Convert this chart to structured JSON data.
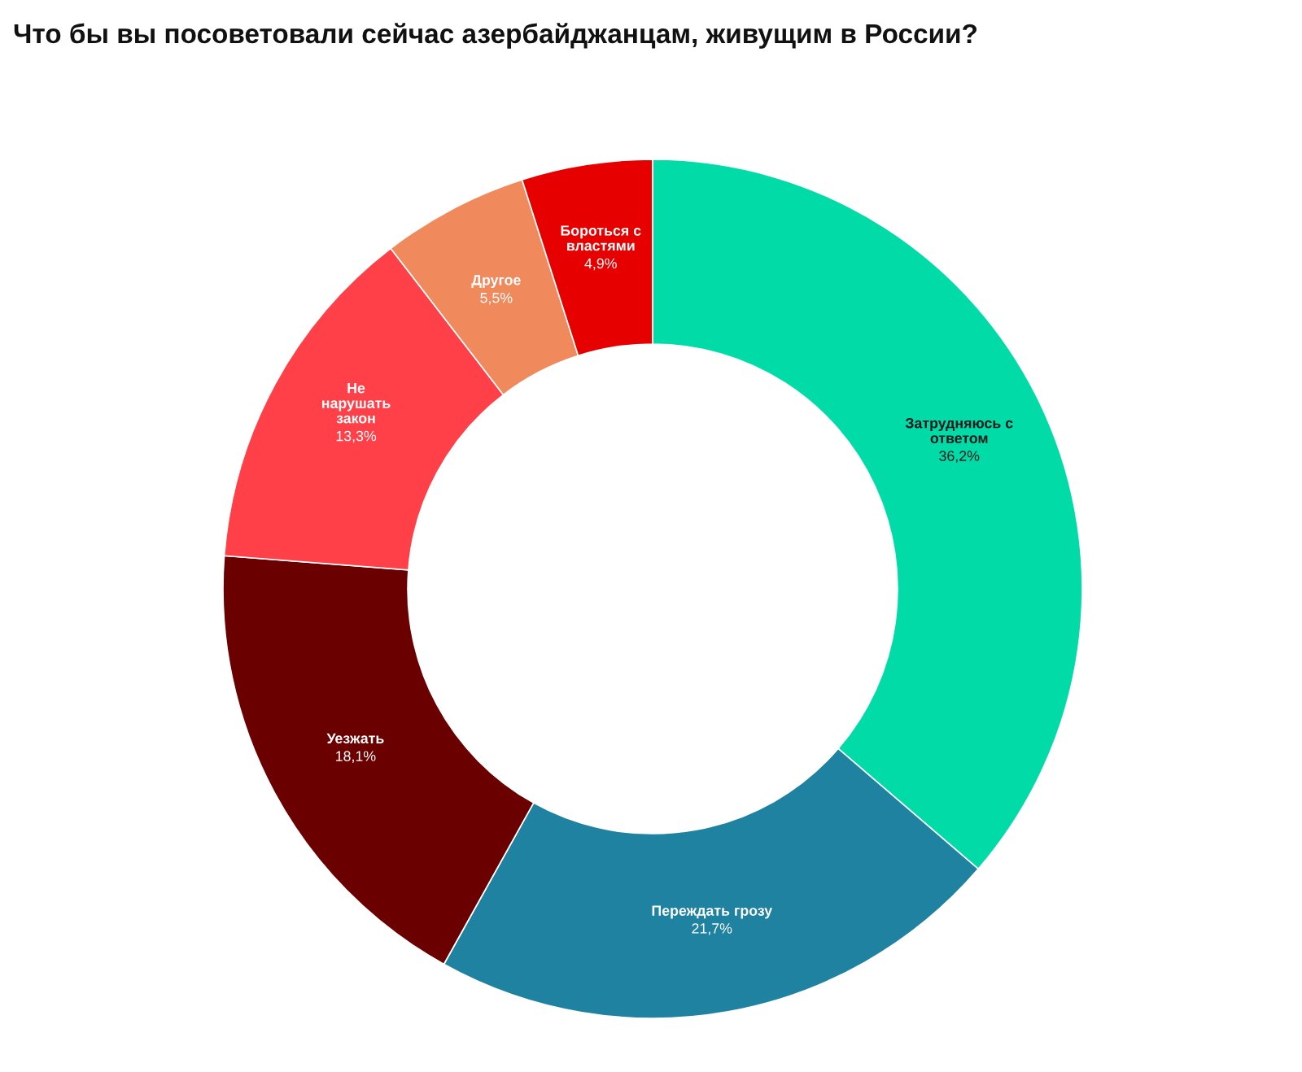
{
  "chart_data": {
    "type": "donut",
    "title": "Что бы вы посоветовали сейчас азербайджанцам, живущим в России?",
    "categories": [
      "Затрудняюсь с\nответом",
      "Переждать грозу",
      "Уезжать",
      "Не\nнарушать\nзакон",
      "Другое",
      "Бороться с\nвластями"
    ],
    "values": [
      36.2,
      21.7,
      18.1,
      13.3,
      5.5,
      4.9
    ],
    "value_labels": [
      "36,2%",
      "21,7%",
      "18,1%",
      "13,3%",
      "5,5%",
      "4,9%"
    ],
    "colors": [
      "#00dba8",
      "#1f82a0",
      "#6b0000",
      "#ff4048",
      "#f08a5d",
      "#e60000"
    ]
  }
}
